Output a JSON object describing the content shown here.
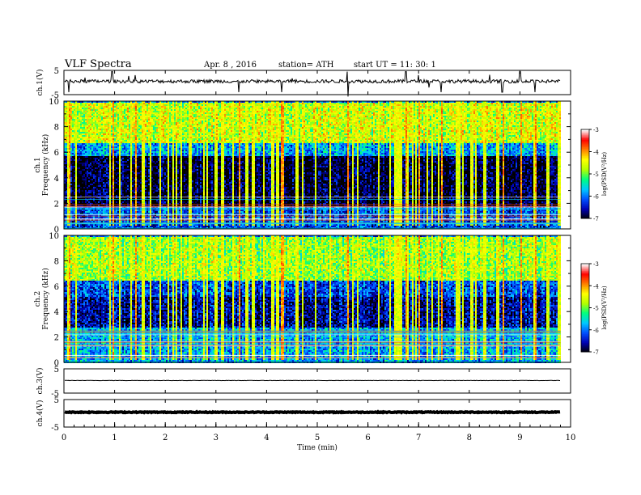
{
  "header": {
    "title": "VLF  Spectra",
    "date": "Apr. 8  , 2016",
    "station": "station= ATH",
    "start": "start  UT  =    11: 30: 1"
  },
  "colors": {
    "colormap": [
      "#000000",
      "#0000b4",
      "#0050ff",
      "#00c8ff",
      "#00ff80",
      "#b4ff00",
      "#ffff00",
      "#ff8000",
      "#ff0000",
      "#ffffff"
    ]
  },
  "chart_data": [
    {
      "type": "line",
      "panel": "ch1-waveform",
      "ylabel": "ch.1(V)",
      "yticks": [
        "5",
        "-5"
      ],
      "ylim": [
        -5,
        5
      ],
      "baseline": 0.5,
      "note": "noisy waveform with spikes"
    },
    {
      "type": "heatmap",
      "panel": "ch1-spectrogram",
      "ylabel": "ch.1\nFrequency  (kHz)",
      "yticks": [
        "0",
        "2",
        "4",
        "6",
        "8",
        "10"
      ],
      "ylim": [
        0,
        10
      ],
      "xlim": [
        0,
        9.8
      ],
      "colorbar": {
        "label": "log(PSD(V²/Hz)",
        "ticks": [
          "-3",
          "-4",
          "-5",
          "-6",
          "-7"
        ],
        "range": [
          -7,
          -3
        ]
      },
      "bands": [
        {
          "f0": 0,
          "f1": 1.8,
          "level": -6.2
        },
        {
          "f0": 1.8,
          "f1": 5.8,
          "level": -6.9
        },
        {
          "f0": 5.8,
          "f1": 6.8,
          "level": -5.8
        },
        {
          "f0": 6.8,
          "f1": 10,
          "level": -4.6
        }
      ]
    },
    {
      "type": "heatmap",
      "panel": "ch2-spectrogram",
      "ylabel": "ch.2\nFrequency  (kHz)",
      "yticks": [
        "0",
        "2",
        "4",
        "6",
        "8",
        "10"
      ],
      "ylim": [
        0,
        10
      ],
      "xlim": [
        0,
        9.8
      ],
      "colorbar": {
        "label": "log(PSD(V²/Hz)",
        "ticks": [
          "-3",
          "-4",
          "-5",
          "-6",
          "-7"
        ],
        "range": [
          -7,
          -3
        ]
      },
      "bands": [
        {
          "f0": 0,
          "f1": 2.8,
          "level": -5.8
        },
        {
          "f0": 2.8,
          "f1": 5.2,
          "level": -6.6
        },
        {
          "f0": 5.2,
          "f1": 6.5,
          "level": -6.2
        },
        {
          "f0": 6.5,
          "f1": 10,
          "level": -4.8
        }
      ]
    },
    {
      "type": "line",
      "panel": "ch3-waveform",
      "ylabel": "ch.3(V)",
      "yticks": [
        "5",
        "-5"
      ],
      "ylim": [
        -5,
        5
      ],
      "baseline": 0.2
    },
    {
      "type": "line",
      "panel": "ch4-waveform",
      "ylabel": "ch.4(V)",
      "yticks": [
        "5",
        "-5"
      ],
      "ylim": [
        -5,
        5
      ],
      "baseline": 0.4
    }
  ],
  "xaxis": {
    "label": "Time  (min)",
    "ticks": [
      "0",
      "1",
      "2",
      "3",
      "4",
      "5",
      "6",
      "7",
      "8",
      "9",
      "10"
    ],
    "xlim": [
      0,
      10
    ]
  }
}
